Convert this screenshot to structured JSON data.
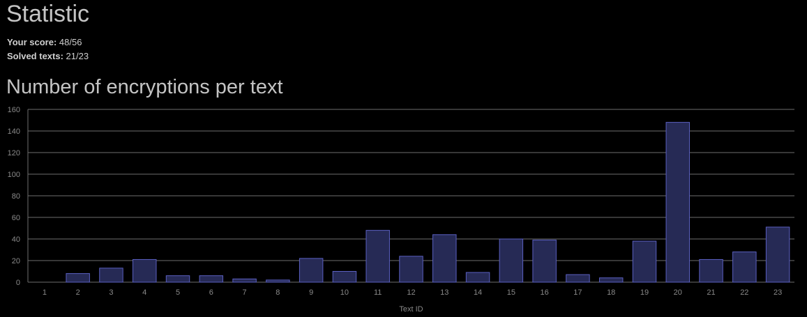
{
  "page": {
    "title": "Statistic",
    "score_label": "Your score:",
    "score_value": "48/56",
    "solved_label": "Solved texts:",
    "solved_value": "21/23"
  },
  "chart_data": {
    "type": "bar",
    "title": "Number of encryptions per text",
    "xlabel": "Text ID",
    "ylabel": "",
    "ylim": [
      0,
      160
    ],
    "yticks": [
      0,
      20,
      40,
      60,
      80,
      100,
      120,
      140,
      160
    ],
    "grid": true,
    "categories": [
      "1",
      "2",
      "3",
      "4",
      "5",
      "6",
      "7",
      "8",
      "9",
      "10",
      "11",
      "12",
      "13",
      "14",
      "15",
      "16",
      "17",
      "18",
      "19",
      "20",
      "21",
      "22",
      "23"
    ],
    "values": [
      0,
      8,
      13,
      21,
      6,
      6,
      3,
      2,
      22,
      10,
      48,
      24,
      44,
      9,
      40,
      39,
      7,
      4,
      38,
      148,
      21,
      28,
      51
    ],
    "colors": {
      "bar_fill": "#262a55",
      "bar_stroke": "#5a5fc0",
      "grid": "#6e6e6e",
      "tick_text": "#8a8a8a"
    }
  }
}
